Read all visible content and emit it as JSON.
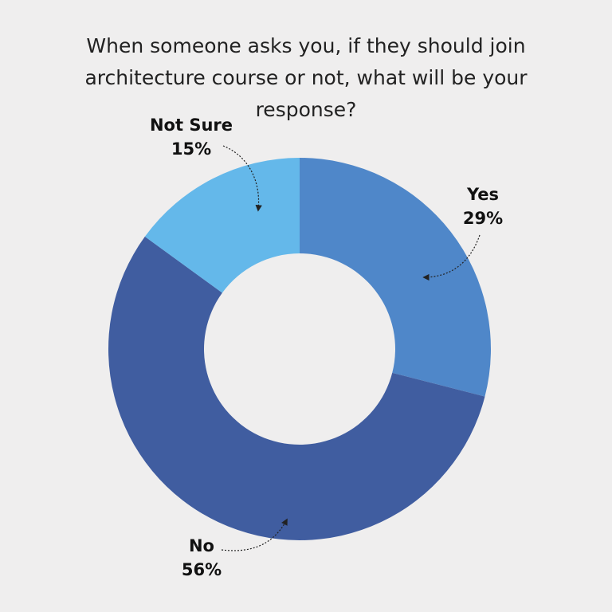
{
  "chart_data": {
    "type": "donut",
    "title": "When someone asks you, if they should join architecture course or not, what will be your response?",
    "categories": [
      "Yes",
      "No",
      "Not Sure"
    ],
    "values": [
      29,
      56,
      15
    ],
    "value_labels": [
      "29%",
      "56%",
      "15%"
    ],
    "colors": [
      "#4f87c9",
      "#405da0",
      "#64b8ea"
    ]
  }
}
